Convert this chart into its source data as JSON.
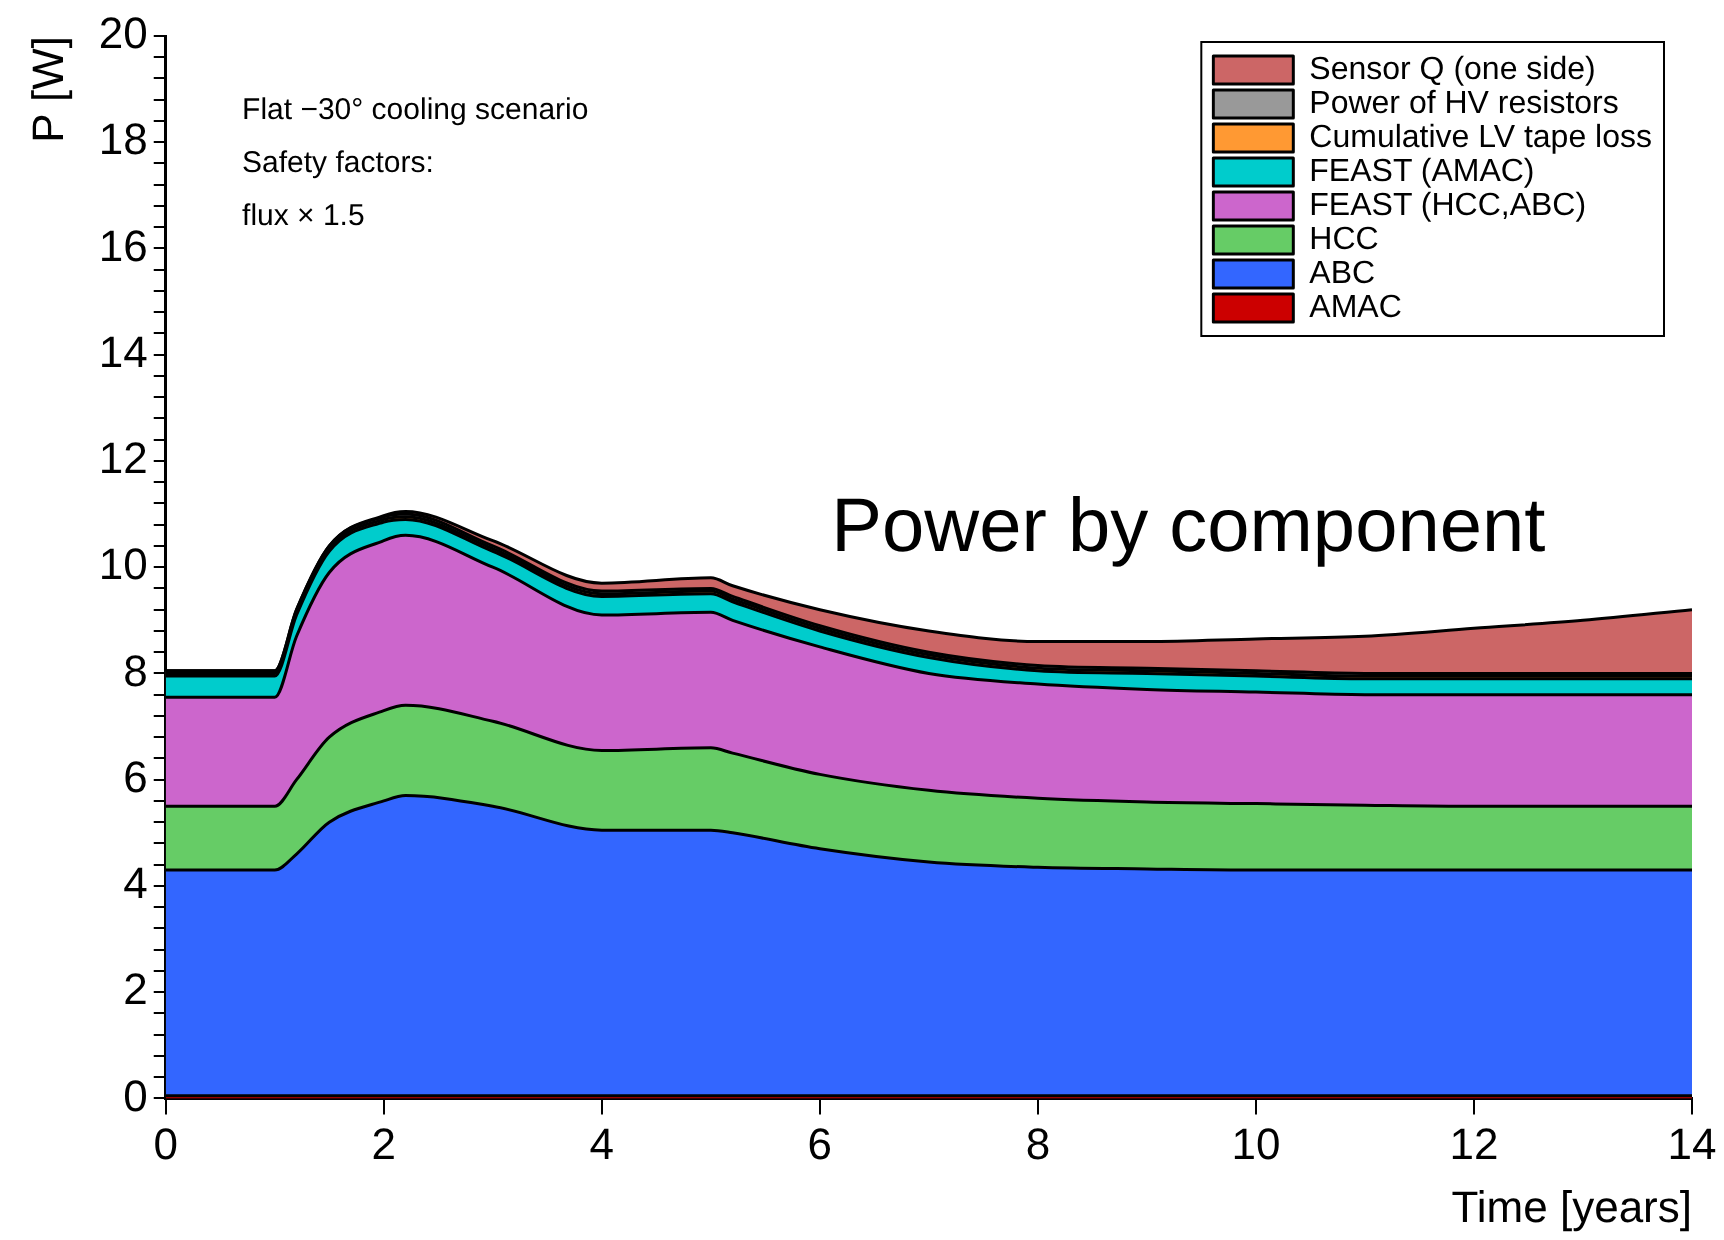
{
  "chart_data": {
    "type": "area",
    "stacked": true,
    "xlabel": "Time [years]",
    "ylabel": "P [W]",
    "x": [
      0,
      1,
      1.2,
      1.5,
      2,
      2.2,
      3,
      4,
      5,
      5.2,
      6,
      7,
      8,
      9,
      10,
      11,
      12,
      13,
      14
    ],
    "xlim": [
      0,
      14
    ],
    "xticks": [
      0,
      2,
      4,
      6,
      8,
      10,
      12,
      14
    ],
    "ylim": [
      0,
      20
    ],
    "yticks": [
      0,
      {
        "value": 0.4,
        "label": null
      },
      {
        "value": 0.8,
        "label": null
      },
      {
        "value": 1.2,
        "label": null
      },
      {
        "value": 1.6,
        "label": null
      },
      2,
      {
        "value": 2.4,
        "label": null
      },
      {
        "value": 2.8,
        "label": null
      },
      {
        "value": 3.2,
        "label": null
      },
      {
        "value": 3.6,
        "label": null
      },
      4,
      {
        "value": 4.4,
        "label": null
      },
      {
        "value": 4.8,
        "label": null
      },
      {
        "value": 5.2,
        "label": null
      },
      {
        "value": 5.6,
        "label": null
      },
      6,
      {
        "value": 6.4,
        "label": null
      },
      {
        "value": 6.8,
        "label": null
      },
      {
        "value": 7.2,
        "label": null
      },
      {
        "value": 7.6,
        "label": null
      },
      8,
      {
        "value": 8.4,
        "label": null
      },
      {
        "value": 8.8,
        "label": null
      },
      {
        "value": 9.2,
        "label": null
      },
      {
        "value": 9.6,
        "label": null
      },
      10,
      {
        "value": 10.4,
        "label": null
      },
      {
        "value": 10.8,
        "label": null
      },
      {
        "value": 11.2,
        "label": null
      },
      {
        "value": 11.6,
        "label": null
      },
      12,
      {
        "value": 12.4,
        "label": null
      },
      {
        "value": 12.8,
        "label": null
      },
      {
        "value": 13.2,
        "label": null
      },
      {
        "value": 13.6,
        "label": null
      },
      14,
      {
        "value": 14.4,
        "label": null
      },
      {
        "value": 14.8,
        "label": null
      },
      {
        "value": 15.2,
        "label": null
      },
      {
        "value": 15.6,
        "label": null
      },
      16,
      {
        "value": 16.4,
        "label": null
      },
      {
        "value": 16.8,
        "label": null
      },
      {
        "value": 17.2,
        "label": null
      },
      {
        "value": 17.6,
        "label": null
      },
      18,
      {
        "value": 18.4,
        "label": null
      },
      {
        "value": 18.8,
        "label": null
      },
      {
        "value": 19.2,
        "label": null
      },
      {
        "value": 19.6,
        "label": null
      },
      20
    ],
    "grid": false,
    "legend": "top right",
    "annotations": [
      "Flat −30° cooling scenario",
      "Safety factors:",
      "flux × 1.5",
      "Power by component"
    ],
    "series": [
      {
        "name": "AMAC",
        "color": "#cc0000",
        "values": [
          0.05,
          0.05,
          0.05,
          0.05,
          0.05,
          0.05,
          0.05,
          0.05,
          0.05,
          0.05,
          0.05,
          0.05,
          0.05,
          0.05,
          0.05,
          0.05,
          0.05,
          0.05,
          0.05
        ]
      },
      {
        "name": "ABC",
        "color": "#3366ff",
        "values": [
          4.25,
          4.25,
          4.55,
          5.15,
          5.55,
          5.65,
          5.45,
          5.0,
          5.0,
          4.95,
          4.65,
          4.4,
          4.3,
          4.27,
          4.25,
          4.25,
          4.25,
          4.25,
          4.25
        ]
      },
      {
        "name": "HCC",
        "color": "#66cc66",
        "values": [
          1.2,
          1.2,
          1.4,
          1.6,
          1.7,
          1.7,
          1.6,
          1.5,
          1.55,
          1.5,
          1.4,
          1.35,
          1.3,
          1.26,
          1.25,
          1.22,
          1.2,
          1.2,
          1.2
        ]
      },
      {
        "name": "FEAST (HCC,ABC)",
        "color": "#cc66cc",
        "values": [
          2.05,
          2.05,
          2.7,
          3.1,
          3.2,
          3.2,
          2.9,
          2.55,
          2.55,
          2.5,
          2.4,
          2.2,
          2.15,
          2.12,
          2.1,
          2.08,
          2.1,
          2.1,
          2.1
        ]
      },
      {
        "name": "FEAST (AMAC)",
        "color": "#00cccc",
        "values": [
          0.4,
          0.4,
          0.4,
          0.4,
          0.35,
          0.3,
          0.3,
          0.35,
          0.35,
          0.35,
          0.3,
          0.3,
          0.25,
          0.3,
          0.3,
          0.3,
          0.3,
          0.3,
          0.3
        ]
      },
      {
        "name": "Cumulative LV tape loss",
        "color": "#ff9933",
        "values": [
          0.05,
          0.05,
          0.05,
          0.05,
          0.05,
          0.05,
          0.05,
          0.05,
          0.05,
          0.05,
          0.05,
          0.05,
          0.05,
          0.05,
          0.05,
          0.05,
          0.05,
          0.05,
          0.05
        ]
      },
      {
        "name": "Power of HV resistors",
        "color": "#999999",
        "values": [
          0.05,
          0.05,
          0.05,
          0.05,
          0.05,
          0.05,
          0.05,
          0.05,
          0.05,
          0.05,
          0.05,
          0.05,
          0.05,
          0.05,
          0.05,
          0.05,
          0.05,
          0.05,
          0.05
        ]
      },
      {
        "name": "Sensor Q (one side)",
        "color": "#cc6666",
        "values": [
          0,
          0,
          0,
          0,
          0.02,
          0.05,
          0.1,
          0.15,
          0.2,
          0.2,
          0.3,
          0.4,
          0.45,
          0.5,
          0.6,
          0.7,
          0.85,
          1.0,
          1.2
        ]
      }
    ]
  }
}
